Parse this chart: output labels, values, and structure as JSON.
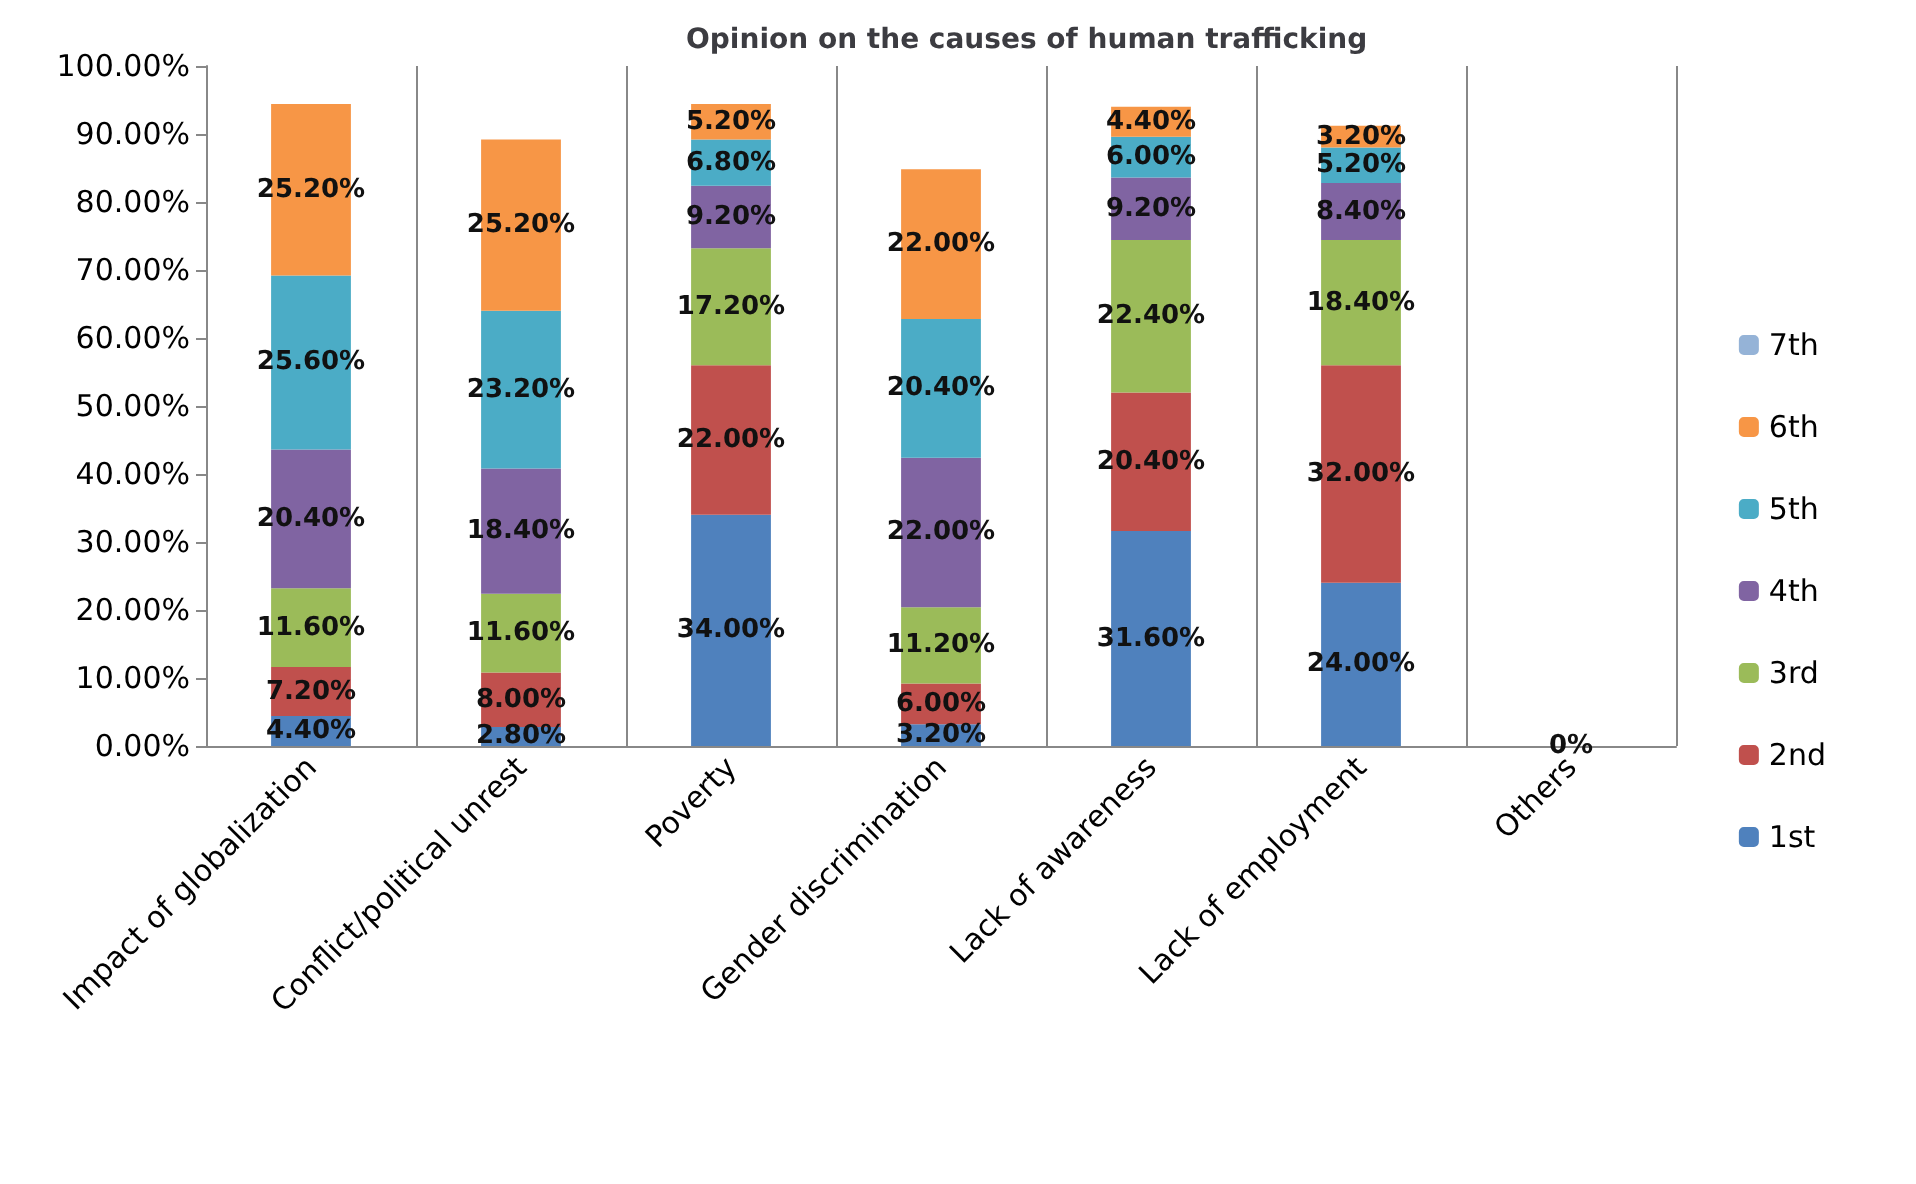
{
  "chart_data": {
    "type": "bar",
    "title": "Opinion on the causes of human trafficking",
    "stacked": true,
    "grid": "x",
    "legend": "right",
    "categories": [
      "Impact of globalization",
      "Conflict/political unrest",
      "Poverty",
      "Gender discrimination",
      "Lack of awareness",
      "Lack of employment",
      "Others"
    ],
    "ylim": [
      0,
      100
    ],
    "yticks": [
      {
        "value": 0,
        "label": "0.00%"
      },
      {
        "value": 10,
        "label": "10.00%"
      },
      {
        "value": 20,
        "label": "20.00%"
      },
      {
        "value": 30,
        "label": "30.00%"
      },
      {
        "value": 40,
        "label": "40.00%"
      },
      {
        "value": 50,
        "label": "50.00%"
      },
      {
        "value": 60,
        "label": "60.00%"
      },
      {
        "value": 70,
        "label": "70.00%"
      },
      {
        "value": 80,
        "label": "80.00%"
      },
      {
        "value": 90,
        "label": "90.00%"
      },
      {
        "value": 100,
        "label": "100.00%"
      }
    ],
    "series": [
      {
        "name": "1st",
        "color": "#4f81bd",
        "values": [
          4.4,
          2.8,
          34,
          3.2,
          31.6,
          24,
          0
        ],
        "value_labels": [
          "4.40%",
          "2.80%",
          "34.00%",
          "3.20%",
          "31.60%",
          "24.00%",
          "0%"
        ]
      },
      {
        "name": "2nd",
        "color": "#c0504d",
        "values": [
          7.2,
          8,
          22,
          6,
          20.4,
          32,
          0
        ],
        "value_labels": [
          "7.20%",
          "8.00%",
          "22.00%",
          "6.00%",
          "20.40%",
          "32.00%",
          null
        ]
      },
      {
        "name": "3rd",
        "color": "#9bbb59",
        "values": [
          11.6,
          11.6,
          17.2,
          11.2,
          22.4,
          18.4,
          0
        ],
        "value_labels": [
          "11.60%",
          "11.60%",
          "17.20%",
          "11.20%",
          "22.40%",
          "18.40%",
          null
        ]
      },
      {
        "name": "4th",
        "color": "#8064a2",
        "values": [
          20.4,
          18.4,
          9.2,
          22,
          9.2,
          8.4,
          0
        ],
        "value_labels": [
          "20.40%",
          "18.40%",
          "9.20%",
          "22.00%",
          "9.20%",
          "8.40%",
          null
        ]
      },
      {
        "name": "5th",
        "color": "#4bacc6",
        "values": [
          25.6,
          23.2,
          6.8,
          20.4,
          6,
          5.2,
          0
        ],
        "value_labels": [
          "25.60%",
          "23.20%",
          "6.80%",
          "20.40%",
          "6.00%",
          "5.20%",
          null
        ]
      },
      {
        "name": "6th",
        "color": "#f79646",
        "values": [
          25.2,
          25.2,
          5.2,
          22,
          4.4,
          3.2,
          0
        ],
        "value_labels": [
          "25.20%",
          "25.20%",
          "5.20%",
          "22.00%",
          "4.40%",
          "3.20%",
          null
        ]
      },
      {
        "name": "7th",
        "color": "#95b3d7",
        "values": [
          null,
          null,
          null,
          null,
          null,
          null,
          0
        ],
        "value_labels": [
          null,
          null,
          null,
          null,
          null,
          null,
          null
        ]
      }
    ]
  }
}
